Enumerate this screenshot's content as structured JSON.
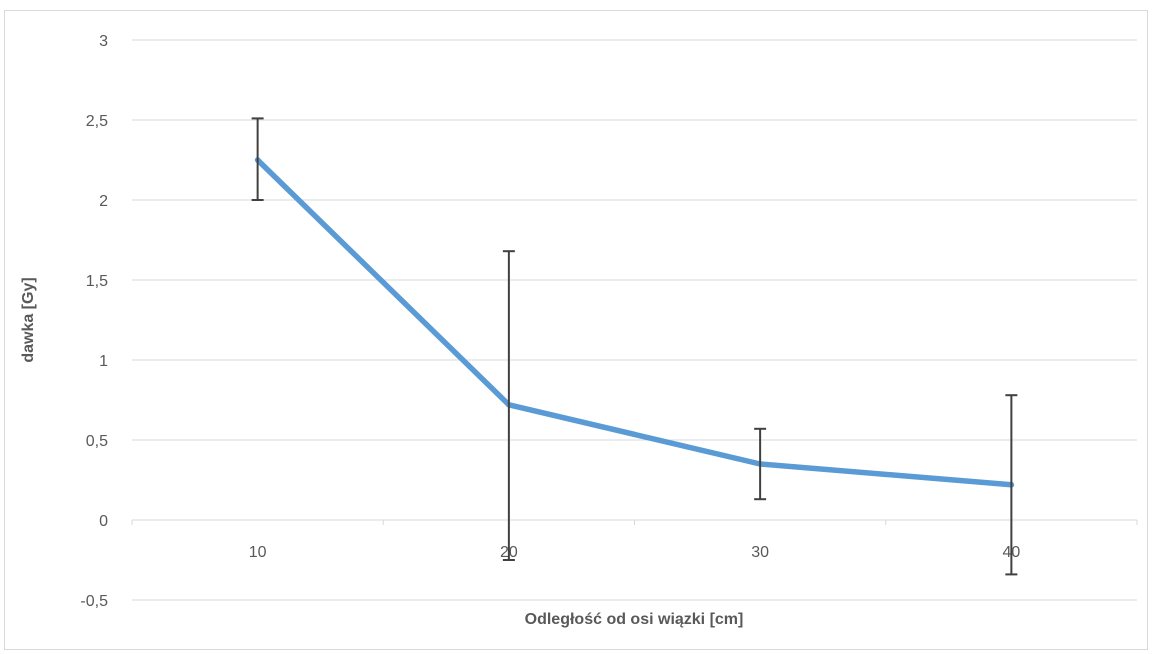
{
  "chart_data": {
    "type": "line",
    "title": "",
    "xlabel": "Odległość od osi wiązki [cm]",
    "ylabel": "dawka [Gy]",
    "categories": [
      "10",
      "20",
      "30",
      "40"
    ],
    "y_ticks": [
      "3",
      "2,5",
      "2",
      "1,5",
      "1",
      "0,5",
      "0",
      "-0,5"
    ],
    "y_tick_values": [
      3,
      2.5,
      2,
      1.5,
      1,
      0.5,
      0,
      -0.5
    ],
    "ylim": [
      -0.5,
      3
    ],
    "grid": true,
    "legend": "none",
    "series": [
      {
        "values": [
          2.25,
          0.72,
          0.35,
          0.22
        ],
        "error_low": [
          2.0,
          -0.25,
          0.13,
          -0.34
        ],
        "error_high": [
          2.51,
          1.68,
          0.57,
          0.78
        ],
        "color": "#5b9bd5"
      }
    ],
    "error_bar_color": "#404040",
    "grid_color": "#d9d9d9"
  }
}
